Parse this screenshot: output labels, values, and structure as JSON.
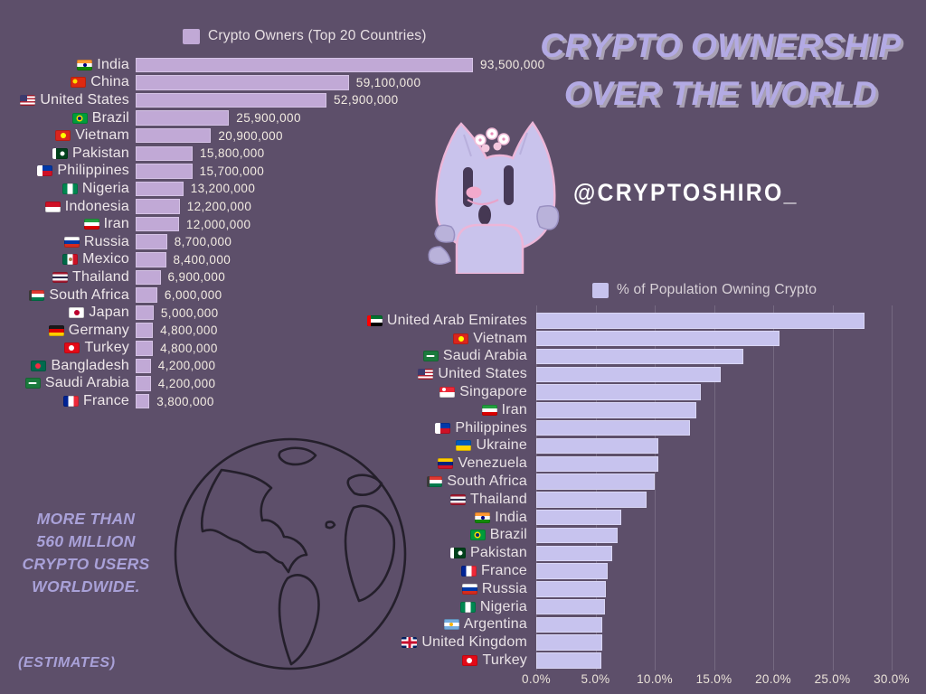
{
  "page": {
    "background": "#5d4f6a",
    "title_line1": "CRYPTO OWNERSHIP",
    "title_line2": "OVER THE WORLD",
    "title_color": "#b3aae4",
    "handle": "@CRYPTOSHIRO_",
    "note_lines": [
      "MORE THAN",
      "560 MILLION",
      "CRYPTO USERS",
      "WORLDWIDE."
    ],
    "estimates_label": "(ESTIMATES)",
    "note_color": "#a9a1d8",
    "mascot": "cryptoshiro-cat",
    "decoration": "globe-line-art"
  },
  "chart_data": [
    {
      "type": "bar",
      "orientation": "horizontal",
      "title": "Crypto Owners (Top 20 Countries)",
      "legend_position": "top",
      "grid": false,
      "bar_color": "#c1a9d6",
      "xlim": [
        0,
        93500000
      ],
      "categories": [
        "India",
        "China",
        "United States",
        "Brazil",
        "Vietnam",
        "Pakistan",
        "Philippines",
        "Nigeria",
        "Indonesia",
        "Iran",
        "Russia",
        "Mexico",
        "Thailand",
        "South Africa",
        "Japan",
        "Germany",
        "Turkey",
        "Bangladesh",
        "Saudi Arabia",
        "France"
      ],
      "flag_keys": [
        "india",
        "china",
        "united_states",
        "brazil",
        "vietnam",
        "pakistan",
        "philippines",
        "nigeria",
        "indonesia",
        "iran",
        "russia",
        "mexico",
        "thailand",
        "south_africa",
        "japan",
        "germany",
        "turkey",
        "bangladesh",
        "saudi_arabia",
        "france"
      ],
      "values": [
        93500000,
        59100000,
        52900000,
        25900000,
        20900000,
        15800000,
        15700000,
        13200000,
        12200000,
        12000000,
        8700000,
        8400000,
        6900000,
        6000000,
        5000000,
        4800000,
        4800000,
        4200000,
        4200000,
        3800000
      ],
      "value_labels": [
        "93,500,000",
        "59,100,000",
        "52,900,000",
        "25,900,000",
        "20,900,000",
        "15,800,000",
        "15,700,000",
        "13,200,000",
        "12,200,000",
        "12,000,000",
        "8,700,000",
        "8,400,000",
        "6,900,000",
        "6,000,000",
        "5,000,000",
        "4,800,000",
        "4,800,000",
        "4,200,000",
        "4,200,000",
        "3,800,000"
      ]
    },
    {
      "type": "bar",
      "orientation": "horizontal",
      "title": "% of Population Owning Crypto",
      "legend_position": "top",
      "grid": true,
      "bar_color": "#c7c3ee",
      "xlim": [
        0,
        30
      ],
      "x_tick_labels": [
        "0.0%",
        "5.0%",
        "10.0%",
        "15.0%",
        "20.0%",
        "25.0%",
        "30.0%"
      ],
      "categories": [
        "United Arab Emirates",
        "Vietnam",
        "Saudi Arabia",
        "United States",
        "Singapore",
        "Iran",
        "Philippines",
        "Ukraine",
        "Venezuela",
        "South Africa",
        "Thailand",
        "India",
        "Brazil",
        "Pakistan",
        "France",
        "Russia",
        "Nigeria",
        "Argentina",
        "United Kingdom",
        "Turkey"
      ],
      "flag_keys": [
        "united_arab_emirates",
        "vietnam",
        "saudi_arabia",
        "united_states",
        "singapore",
        "iran",
        "philippines",
        "ukraine",
        "venezuela",
        "south_africa",
        "thailand",
        "india",
        "brazil",
        "pakistan",
        "france",
        "russia",
        "nigeria",
        "argentina",
        "united_kingdom",
        "turkey"
      ],
      "values": [
        27.7,
        20.5,
        17.5,
        15.6,
        13.9,
        13.5,
        13.0,
        10.3,
        10.3,
        10.0,
        9.3,
        7.2,
        6.9,
        6.4,
        6.0,
        5.9,
        5.8,
        5.6,
        5.6,
        5.5
      ]
    }
  ],
  "flags": {
    "india": {
      "dir": "h",
      "stripes": [
        "#FF9933",
        "#F7F7F7",
        "#138808"
      ],
      "overlay": [
        {
          "kind": "dot",
          "color": "#000080",
          "size": 4
        }
      ]
    },
    "china": {
      "dir": "solid",
      "stripes": [
        "#DE2910"
      ],
      "overlay": [
        {
          "kind": "dot",
          "color": "#FFDE00",
          "x": "30%",
          "y": "35%",
          "size": 5
        }
      ]
    },
    "united_states": {
      "dir": "h",
      "stripes": [
        "#B22234",
        "#FFFFFF",
        "#B22234",
        "#FFFFFF",
        "#B22234",
        "#FFFFFF",
        "#B22234"
      ],
      "overlay": [
        {
          "kind": "canton",
          "color": "#3C3B6E"
        }
      ]
    },
    "brazil": {
      "dir": "solid",
      "stripes": [
        "#009C3B"
      ],
      "overlay": [
        {
          "kind": "dot",
          "color": "#FFDF00",
          "size": 7
        },
        {
          "kind": "dot",
          "color": "#002776",
          "size": 4
        }
      ]
    },
    "vietnam": {
      "dir": "solid",
      "stripes": [
        "#DA251D"
      ],
      "overlay": [
        {
          "kind": "dot",
          "color": "#FFFF00",
          "size": 6
        }
      ]
    },
    "pakistan": {
      "dir": "solid",
      "stripes": [
        "#01411C"
      ],
      "overlay": [
        {
          "kind": "band",
          "color": "#FFFFFF",
          "w": "25%"
        },
        {
          "kind": "dot",
          "color": "#FFFFFF",
          "x": "62%",
          "size": 5
        }
      ]
    },
    "philippines": {
      "dir": "h",
      "stripes": [
        "#0038A8",
        "#CE1126"
      ],
      "overlay": [
        {
          "kind": "band",
          "color": "#FFFFFF",
          "w": "32%"
        }
      ]
    },
    "nigeria": {
      "dir": "v",
      "stripes": [
        "#008751",
        "#FFFFFF",
        "#008751"
      ]
    },
    "indonesia": {
      "dir": "h",
      "stripes": [
        "#CE1126",
        "#FFFFFF"
      ]
    },
    "iran": {
      "dir": "h",
      "stripes": [
        "#239F40",
        "#FFFFFF",
        "#DA0000"
      ]
    },
    "russia": {
      "dir": "h",
      "stripes": [
        "#FFFFFF",
        "#0039A6",
        "#D52B1E"
      ]
    },
    "mexico": {
      "dir": "v",
      "stripes": [
        "#006847",
        "#FFFFFF",
        "#CE1126"
      ],
      "overlay": [
        {
          "kind": "dot",
          "color": "#B08050",
          "size": 4
        }
      ]
    },
    "thailand": {
      "dir": "h",
      "stripes": [
        "#A51931",
        "#F4F5F8",
        "#2D2A4A",
        "#F4F5F8",
        "#A51931"
      ]
    },
    "south_africa": {
      "dir": "h",
      "stripes": [
        "#DE3831",
        "#FFFFFF",
        "#007A4D"
      ],
      "overlay": [
        {
          "kind": "band",
          "color": "#3a3a3a",
          "w": "18%"
        }
      ]
    },
    "japan": {
      "dir": "solid",
      "stripes": [
        "#FFFFFF"
      ],
      "overlay": [
        {
          "kind": "dot",
          "color": "#BC002D",
          "size": 6
        }
      ]
    },
    "germany": {
      "dir": "h",
      "stripes": [
        "#1a1a1a",
        "#DD0000",
        "#FFCE00"
      ]
    },
    "turkey": {
      "dir": "solid",
      "stripes": [
        "#E30A17"
      ],
      "overlay": [
        {
          "kind": "dot",
          "color": "#FFFFFF",
          "x": "42%",
          "size": 6
        }
      ]
    },
    "bangladesh": {
      "dir": "solid",
      "stripes": [
        "#006A4E"
      ],
      "overlay": [
        {
          "kind": "dot",
          "color": "#F42A41",
          "x": "45%",
          "size": 6
        }
      ]
    },
    "saudi_arabia": {
      "dir": "solid",
      "stripes": [
        "#1B7A3D"
      ],
      "overlay": [
        {
          "kind": "dash",
          "color": "#FFFFFF",
          "w": 9,
          "h": 2
        }
      ]
    },
    "france": {
      "dir": "v",
      "stripes": [
        "#002395",
        "#FFFFFF",
        "#ED2939"
      ]
    },
    "united_arab_emirates": {
      "dir": "h",
      "stripes": [
        "#00732F",
        "#FFFFFF",
        "#000000"
      ],
      "overlay": [
        {
          "kind": "band",
          "color": "#FF0000",
          "w": "27%"
        }
      ]
    },
    "singapore": {
      "dir": "h",
      "stripes": [
        "#ED2939",
        "#FFFFFF"
      ],
      "overlay": [
        {
          "kind": "dot",
          "color": "#FFFFFF",
          "x": "25%",
          "y": "28%",
          "size": 4
        }
      ]
    },
    "ukraine": {
      "dir": "h",
      "stripes": [
        "#005BBB",
        "#FFD500"
      ]
    },
    "venezuela": {
      "dir": "h",
      "stripes": [
        "#FFCC00",
        "#00247D",
        "#CF142B"
      ]
    },
    "argentina": {
      "dir": "h",
      "stripes": [
        "#74ACDF",
        "#FFFFFF",
        "#74ACDF"
      ],
      "overlay": [
        {
          "kind": "dot",
          "color": "#F6B40E",
          "size": 4
        }
      ]
    },
    "united_kingdom": {
      "dir": "solid",
      "stripes": [
        "#012169"
      ],
      "overlay": [
        {
          "kind": "crossh",
          "color": "#FFFFFF",
          "size": 7
        },
        {
          "kind": "crossv",
          "color": "#FFFFFF",
          "size": 7
        },
        {
          "kind": "crossh",
          "color": "#C8102E",
          "size": 3
        },
        {
          "kind": "crossv",
          "color": "#C8102E",
          "size": 3
        }
      ]
    }
  }
}
